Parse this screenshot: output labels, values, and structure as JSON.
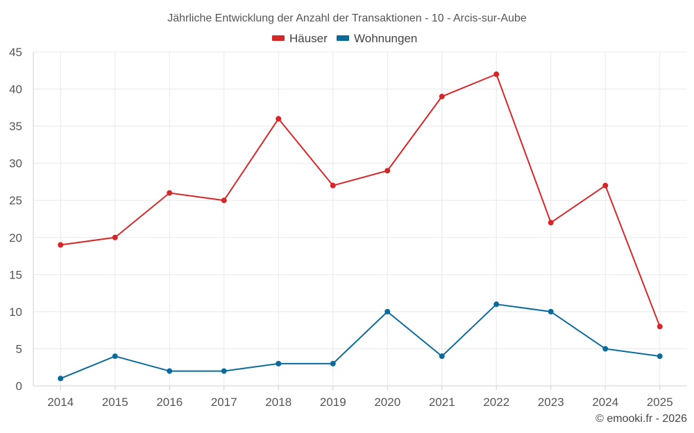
{
  "chart_data": {
    "type": "line",
    "title": "Jährliche Entwicklung der Anzahl der Transaktionen - 10 - Arcis-sur-Aube",
    "categories": [
      "2014",
      "2015",
      "2016",
      "2017",
      "2018",
      "2019",
      "2020",
      "2021",
      "2022",
      "2023",
      "2024",
      "2025"
    ],
    "series": [
      {
        "name": "Häuser",
        "color": "#d62728",
        "values": [
          19,
          20,
          26,
          25,
          36,
          27,
          29,
          39,
          42,
          22,
          27,
          8
        ]
      },
      {
        "name": "Wohnungen",
        "color": "#0b6a9c",
        "values": [
          1,
          4,
          2,
          2,
          3,
          3,
          10,
          4,
          11,
          10,
          5,
          4
        ]
      }
    ],
    "ylim": [
      0,
      45
    ],
    "yticks": [
      "0",
      "5",
      "10",
      "15",
      "20",
      "25",
      "30",
      "35",
      "40",
      "45"
    ],
    "grid": true,
    "legend_position": "top-center",
    "xlabel": "",
    "ylabel": ""
  },
  "credit": "© emooki.fr - 2026"
}
